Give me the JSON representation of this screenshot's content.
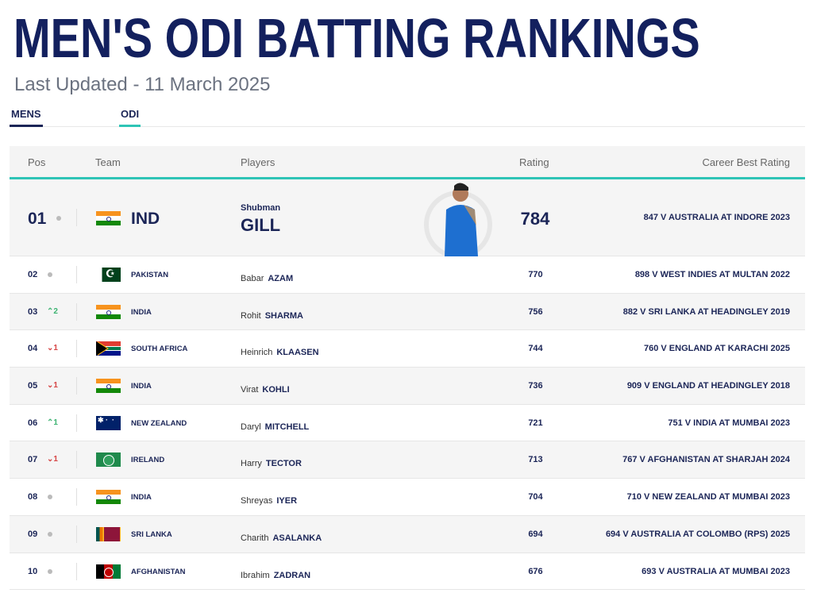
{
  "page": {
    "title": "MEN'S ODI BATTING RANKINGS",
    "last_updated": "Last Updated - 11 March 2025",
    "tabs": [
      {
        "label": "MENS",
        "active": true
      },
      {
        "label": "ODI",
        "active": true
      }
    ]
  },
  "table": {
    "headers": {
      "pos": "Pos",
      "team": "Team",
      "players": "Players",
      "rating": "Rating",
      "career_best": "Career Best Rating"
    },
    "accent_color": "#2ec4b6",
    "rows": [
      {
        "pos": "01",
        "change": "",
        "trend": "same",
        "flag": "india",
        "team": "IND",
        "first": "Shubman",
        "last": "GILL",
        "rating": "784",
        "best": "847 V AUSTRALIA AT INDORE 2023"
      },
      {
        "pos": "02",
        "change": "",
        "trend": "same",
        "flag": "pakistan",
        "team": "PAKISTAN",
        "first": "Babar",
        "last": "AZAM",
        "rating": "770",
        "best": "898 V WEST INDIES AT MULTAN 2022"
      },
      {
        "pos": "03",
        "change": "^2",
        "trend": "up",
        "flag": "india",
        "team": "INDIA",
        "first": "Rohit",
        "last": "SHARMA",
        "rating": "756",
        "best": "882 V SRI LANKA AT HEADINGLEY 2019"
      },
      {
        "pos": "04",
        "change": "v1",
        "trend": "down",
        "flag": "south-africa",
        "team": "SOUTH AFRICA",
        "first": "Heinrich",
        "last": "KLAASEN",
        "rating": "744",
        "best": "760 V ENGLAND AT KARACHI 2025"
      },
      {
        "pos": "05",
        "change": "v1",
        "trend": "down",
        "flag": "india",
        "team": "INDIA",
        "first": "Virat",
        "last": "KOHLI",
        "rating": "736",
        "best": "909 V ENGLAND AT HEADINGLEY 2018"
      },
      {
        "pos": "06",
        "change": "^1",
        "trend": "up",
        "flag": "new-zealand",
        "team": "NEW ZEALAND",
        "first": "Daryl",
        "last": "MITCHELL",
        "rating": "721",
        "best": "751 V INDIA AT MUMBAI 2023"
      },
      {
        "pos": "07",
        "change": "v1",
        "trend": "down",
        "flag": "ireland",
        "team": "IRELAND",
        "first": "Harry",
        "last": "TECTOR",
        "rating": "713",
        "best": "767 V AFGHANISTAN AT SHARJAH 2024"
      },
      {
        "pos": "08",
        "change": "",
        "trend": "same",
        "flag": "india",
        "team": "INDIA",
        "first": "Shreyas",
        "last": "IYER",
        "rating": "704",
        "best": "710 V NEW ZEALAND AT MUMBAI 2023"
      },
      {
        "pos": "09",
        "change": "",
        "trend": "same",
        "flag": "sri-lanka",
        "team": "SRI LANKA",
        "first": "Charith",
        "last": "ASALANKA",
        "rating": "694",
        "best": "694 V AUSTRALIA AT COLOMBO (RPS) 2025"
      },
      {
        "pos": "10",
        "change": "",
        "trend": "same",
        "flag": "afghanistan",
        "team": "AFGHANISTAN",
        "first": "Ibrahim",
        "last": "ZADRAN",
        "rating": "676",
        "best": "693 V AUSTRALIA AT MUMBAI 2023"
      }
    ]
  }
}
